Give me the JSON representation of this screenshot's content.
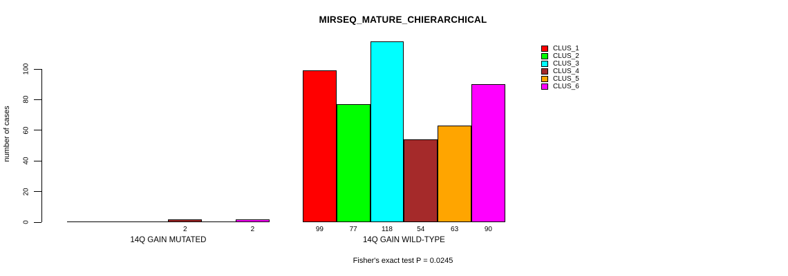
{
  "chart_data": {
    "type": "bar",
    "title": "MIRSEQ_MATURE_CHIERARCHICAL",
    "ylabel": "number of cases",
    "xlabel": "",
    "yticks": [
      0,
      20,
      40,
      60,
      80,
      100
    ],
    "ylim": [
      0,
      120
    ],
    "grid": false,
    "legend_position": "top-right",
    "legend": [
      "CLUS_1",
      "CLUS_2",
      "CLUS_3",
      "CLUS_4",
      "CLUS_5",
      "CLUS_6"
    ],
    "colors": [
      "#FF0000",
      "#00FF00",
      "#00FFFF",
      "#A52A2A",
      "#FFA500",
      "#FF00FF"
    ],
    "groups": [
      {
        "label": "14Q GAIN MUTATED",
        "values": [
          0,
          0,
          0,
          2,
          0,
          2
        ]
      },
      {
        "label": "14Q GAIN WILD-TYPE",
        "values": [
          99,
          77,
          118,
          54,
          63,
          90
        ]
      }
    ],
    "bar_value_labels": [
      [
        "",
        "",
        "",
        "2",
        "",
        "2"
      ],
      [
        "99",
        "77",
        "118",
        "54",
        "63",
        "90"
      ]
    ],
    "footnote": "Fisher's exact test P = 0.0245"
  }
}
